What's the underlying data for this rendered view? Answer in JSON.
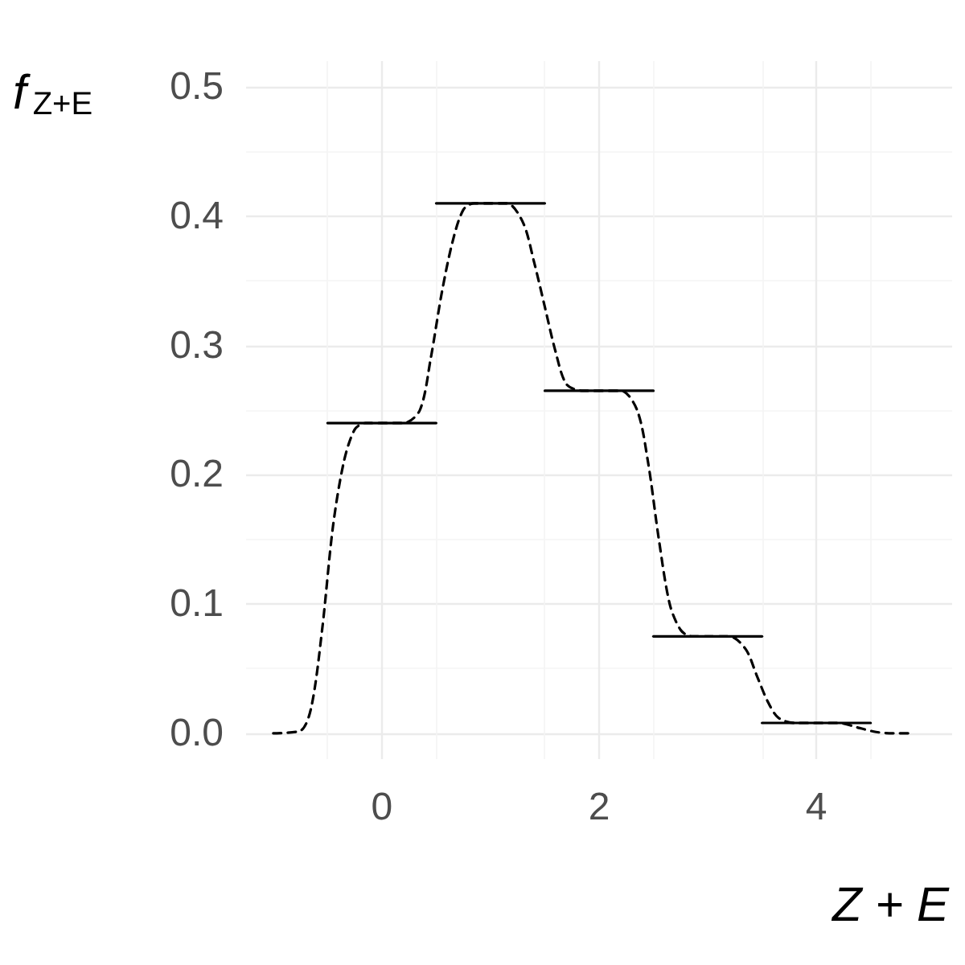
{
  "chart_data": {
    "type": "line",
    "xlabel": "Z + E",
    "ylabel": "f$_{Z+E}$",
    "xlim": [
      -1.25,
      5.25
    ],
    "ylim": [
      -0.02,
      0.52
    ],
    "xticks": [
      0,
      2,
      4
    ],
    "yticks": [
      {
        "value": 0,
        "label": "0.0"
      },
      {
        "value": 0.1,
        "label": "0.1"
      },
      {
        "value": 0.2,
        "label": "0.2"
      },
      {
        "value": 0.3,
        "label": "0.3"
      },
      {
        "value": 0.4,
        "label": "0.4"
      },
      {
        "value": 0.5,
        "label": "0.5"
      }
    ],
    "grid": true,
    "marker": "none",
    "series": [
      {
        "color": "#000000",
        "line_style": "solid",
        "x": [
          -0.5,
          0.5
        ],
        "values": [
          0.24,
          0.24
        ]
      },
      {
        "color": "#000000",
        "line_style": "solid",
        "x": [
          0.5,
          1.5
        ],
        "values": [
          0.41,
          0.41
        ]
      },
      {
        "color": "#000000",
        "line_style": "solid",
        "x": [
          1.5,
          2.5
        ],
        "values": [
          0.265,
          0.265
        ]
      },
      {
        "color": "#000000",
        "line_style": "solid",
        "x": [
          2.5,
          3.5
        ],
        "values": [
          0.075,
          0.075
        ]
      },
      {
        "color": "#000000",
        "line_style": "solid",
        "x": [
          3.5,
          4.5
        ],
        "values": [
          0.008,
          0.008
        ]
      },
      {
        "color": "#000000",
        "line_style": "dashed",
        "x": [
          -1,
          -0.75,
          -0.65,
          -0.55,
          -0.45,
          -0.35,
          -0.25,
          -0.15,
          0.2,
          0.35,
          0.45,
          0.55,
          0.65,
          0.75,
          0.85,
          1.15,
          1.3,
          1.4,
          1.5,
          1.6,
          1.7,
          1.85,
          2.2,
          2.35,
          2.45,
          2.55,
          2.65,
          2.75,
          2.85,
          3.2,
          3.35,
          3.45,
          3.55,
          3.65,
          3.8,
          4.2,
          4.4,
          4.55,
          4.7,
          4.9
        ],
        "values": [
          0,
          0.002,
          0.02,
          0.08,
          0.16,
          0.21,
          0.235,
          0.24,
          0.24,
          0.25,
          0.29,
          0.34,
          0.38,
          0.405,
          0.41,
          0.41,
          0.395,
          0.365,
          0.33,
          0.295,
          0.27,
          0.265,
          0.265,
          0.25,
          0.21,
          0.15,
          0.1,
          0.08,
          0.075,
          0.075,
          0.065,
          0.045,
          0.025,
          0.012,
          0.008,
          0.008,
          0.004,
          0.001,
          0,
          0
        ]
      }
    ]
  }
}
